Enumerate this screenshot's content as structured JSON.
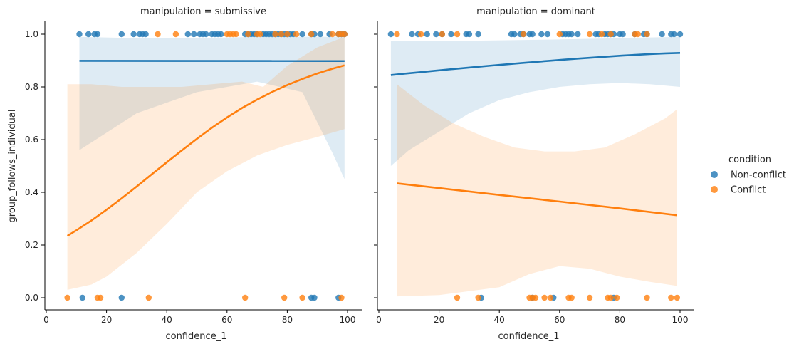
{
  "chart_data": {
    "type": "scatter",
    "title": "",
    "xlabel": "confidence_1",
    "ylabel": "group_follows_individual_label",
    "ylabel_text": "group_follows_individual",
    "xlim": [
      0,
      100
    ],
    "ylim": [
      0,
      1
    ],
    "xticks": [
      "0",
      "20",
      "40",
      "60",
      "80",
      "100"
    ],
    "yticks": [
      "0.0",
      "0.2",
      "0.4",
      "0.6",
      "0.8",
      "1.0"
    ],
    "grid": false,
    "legend": {
      "title": "condition",
      "placement": "right",
      "entries": [
        "Non-conflict",
        "Conflict"
      ]
    },
    "colors": {
      "Non-conflict": "#1f77b4",
      "Conflict": "#ff7f0e"
    },
    "facets": [
      {
        "title": "manipulation = submissive",
        "series": [
          {
            "name": "Non-conflict",
            "points_y1": [
              11,
              14,
              16,
              17,
              25,
              29,
              31,
              32,
              33,
              47,
              49,
              51,
              52,
              53,
              55,
              56,
              57,
              58,
              66,
              67,
              68,
              69,
              70,
              72,
              73,
              74,
              75,
              76,
              77,
              78,
              79,
              80,
              81,
              82,
              85,
              88,
              89,
              91,
              94,
              97,
              98,
              99
            ],
            "points_y0": [
              12,
              25,
              88,
              89,
              97
            ],
            "fit_x": [
              11,
              99
            ],
            "fit_y": [
              0.899,
              0.898
            ],
            "ci_lower": [
              [
                11,
                0.56
              ],
              [
                30,
                0.7
              ],
              [
                50,
                0.78
              ],
              [
                70,
                0.82
              ],
              [
                85,
                0.78
              ],
              [
                95,
                0.55
              ],
              [
                99,
                0.45
              ]
            ],
            "ci_upper": [
              [
                11,
                0.99
              ],
              [
                30,
                0.985
              ],
              [
                50,
                0.985
              ],
              [
                70,
                0.99
              ],
              [
                85,
                0.99
              ],
              [
                95,
                0.99
              ],
              [
                99,
                0.99
              ]
            ]
          },
          {
            "name": "Conflict",
            "points_y1": [
              37,
              43,
              60,
              61,
              62,
              63,
              67,
              70,
              71,
              76,
              78,
              80,
              83,
              88,
              95,
              97,
              98,
              99
            ],
            "points_y0": [
              7,
              17,
              18,
              34,
              66,
              79,
              85,
              98
            ],
            "fit_x": [
              7,
              10,
              15,
              20,
              25,
              30,
              35,
              40,
              45,
              50,
              55,
              60,
              65,
              70,
              75,
              80,
              85,
              90,
              95,
              99
            ],
            "fit_y": [
              0.235,
              0.256,
              0.293,
              0.334,
              0.377,
              0.422,
              0.468,
              0.514,
              0.559,
              0.603,
              0.645,
              0.684,
              0.72,
              0.752,
              0.781,
              0.807,
              0.83,
              0.851,
              0.869,
              0.882
            ],
            "ci_lower": [
              [
                7,
                0.03
              ],
              [
                15,
                0.05
              ],
              [
                20,
                0.08
              ],
              [
                30,
                0.17
              ],
              [
                40,
                0.28
              ],
              [
                50,
                0.4
              ],
              [
                60,
                0.48
              ],
              [
                70,
                0.54
              ],
              [
                80,
                0.58
              ],
              [
                90,
                0.61
              ],
              [
                99,
                0.64
              ]
            ],
            "ci_upper": [
              [
                7,
                0.81
              ],
              [
                15,
                0.81
              ],
              [
                25,
                0.8
              ],
              [
                35,
                0.8
              ],
              [
                45,
                0.8
              ],
              [
                55,
                0.81
              ],
              [
                65,
                0.82
              ],
              [
                72,
                0.8
              ],
              [
                80,
                0.88
              ],
              [
                90,
                0.95
              ],
              [
                99,
                0.99
              ]
            ]
          }
        ]
      },
      {
        "title": "manipulation = dominant",
        "series": [
          {
            "name": "Non-conflict",
            "points_y1": [
              4,
              11,
              13,
              16,
              19,
              21,
              24,
              29,
              30,
              33,
              44,
              45,
              47,
              48,
              50,
              51,
              54,
              56,
              61,
              62,
              63,
              64,
              66,
              72,
              73,
              75,
              76,
              77,
              78,
              80,
              81,
              85,
              88,
              89,
              94,
              97,
              98,
              100
            ],
            "points_y0": [
              34,
              51,
              58,
              78
            ],
            "fit_x": [
              4,
              100
            ],
            "fit_y": [
              0.845,
              0.929
            ],
            "ci_lower": [
              [
                4,
                0.5
              ],
              [
                10,
                0.56
              ],
              [
                20,
                0.63
              ],
              [
                30,
                0.7
              ],
              [
                40,
                0.75
              ],
              [
                50,
                0.78
              ],
              [
                60,
                0.8
              ],
              [
                70,
                0.81
              ],
              [
                80,
                0.815
              ],
              [
                90,
                0.81
              ],
              [
                100,
                0.8
              ]
            ],
            "ci_upper": [
              [
                4,
                0.975
              ],
              [
                30,
                0.975
              ],
              [
                60,
                0.98
              ],
              [
                80,
                0.985
              ],
              [
                100,
                0.99
              ]
            ]
          },
          {
            "name": "Conflict",
            "points_y1": [
              6,
              14,
              21,
              26,
              48,
              60,
              70,
              74,
              77,
              85,
              86,
              89
            ],
            "points_y0": [
              26,
              33,
              50,
              51,
              52,
              55,
              57,
              63,
              64,
              70,
              76,
              77,
              79,
              89,
              97,
              99
            ],
            "fit_x": [
              6,
              20,
              40,
              60,
              80,
              99
            ],
            "fit_y": [
              0.434,
              0.416,
              0.39,
              0.365,
              0.339,
              0.313
            ],
            "ci_lower": [
              [
                6,
                0.005
              ],
              [
                20,
                0.01
              ],
              [
                40,
                0.04
              ],
              [
                50,
                0.09
              ],
              [
                60,
                0.12
              ],
              [
                70,
                0.11
              ],
              [
                80,
                0.08
              ],
              [
                90,
                0.06
              ],
              [
                99,
                0.045
              ]
            ],
            "ci_upper": [
              [
                6,
                0.81
              ],
              [
                15,
                0.73
              ],
              [
                25,
                0.66
              ],
              [
                35,
                0.61
              ],
              [
                45,
                0.57
              ],
              [
                55,
                0.555
              ],
              [
                65,
                0.555
              ],
              [
                75,
                0.57
              ],
              [
                85,
                0.62
              ],
              [
                95,
                0.68
              ],
              [
                99,
                0.715
              ]
            ]
          }
        ]
      }
    ]
  }
}
